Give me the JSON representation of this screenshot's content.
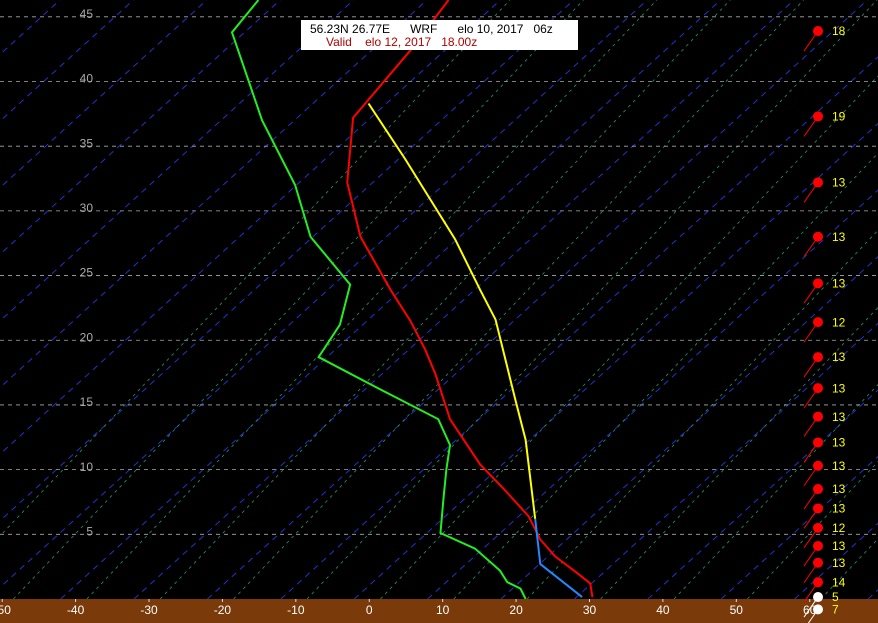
{
  "chart_data": {
    "type": "line",
    "title": "56.23N 26.77E      WRF      elo 10, 2017   06z",
    "subtitle": "Valid    elo 12, 2017   18.00z",
    "xlim": [
      -50.3,
      69.3
    ],
    "xticks": [
      -50,
      -40,
      -30,
      -20,
      -10,
      0,
      10,
      20,
      30,
      40,
      50,
      60
    ],
    "ylim": [
      0,
      46.3
    ],
    "yticks": [
      5,
      10,
      15,
      20,
      25,
      30,
      35,
      40,
      45
    ],
    "grid": true,
    "series": [
      {
        "color": "#ff0000",
        "x": [
          30.4,
          30.1,
          28.1,
          25.3,
          23.3,
          21.7,
          18.5,
          15.1,
          11.0,
          9.0,
          7.6,
          5.6,
          2.9,
          -1.2,
          -3.0,
          -2.2,
          -0.1,
          5.6,
          10.8
        ],
        "values": [
          0.15,
          1.2,
          2.1,
          3.3,
          4.6,
          6.4,
          8.4,
          10.4,
          13.9,
          17.4,
          19.3,
          21.5,
          23.9,
          28.0,
          32.2,
          37.2,
          38.6,
          42.4,
          46.3
        ]
      },
      {
        "color": "#22ee22",
        "x": [
          21.3,
          20.6,
          18.8,
          17.8,
          14.4,
          9.7,
          10.1,
          10.5,
          11.0,
          9.4,
          1.5,
          -6.9,
          -4.0,
          -2.6,
          -8.0,
          -10.1,
          -14.6,
          -18.7,
          -15.1
        ],
        "values": [
          0,
          0.8,
          1.3,
          2.2,
          3.9,
          5.1,
          7.7,
          10.0,
          11.9,
          13.9,
          16.2,
          18.7,
          21.2,
          24.3,
          28.0,
          32.0,
          37.0,
          43.8,
          46.3
        ]
      },
      {
        "color": "#2288ff",
        "x": [
          29.0,
          23.3,
          22.6
        ],
        "values": [
          0.15,
          2.7,
          6.2
        ]
      },
      {
        "color": "#ffff00",
        "x": [
          22.6,
          21.3,
          19.9,
          17.2,
          15.1,
          11.7,
          8.3,
          4.9,
          -0.1
        ],
        "values": [
          6.2,
          12.3,
          15.4,
          21.6,
          23.9,
          27.8,
          30.9,
          34.0,
          38.3
        ]
      }
    ],
    "wind": {
      "heights": [
        43.9,
        37.3,
        32.2,
        28.0,
        24.4,
        21.4,
        18.7,
        16.3,
        14.1,
        12.1,
        10.3,
        8.5,
        7.0,
        5.5,
        4.1,
        2.8,
        1.3,
        0.15,
        -0.8
      ],
      "speeds": [
        18,
        19,
        13,
        13,
        13,
        12,
        13,
        13,
        13,
        13,
        13,
        13,
        13,
        12,
        13,
        13,
        14,
        5,
        7
      ],
      "colors": [
        "#ff0000",
        "#ff0000",
        "#ff0000",
        "#ff0000",
        "#ff0000",
        "#ff0000",
        "#ff0000",
        "#ff0000",
        "#ff0000",
        "#ff0000",
        "#ff0000",
        "#ff0000",
        "#ff0000",
        "#ff0000",
        "#ff0000",
        "#ff0000",
        "#ff0000",
        "#ffffff",
        "#ffffff"
      ]
    }
  }
}
